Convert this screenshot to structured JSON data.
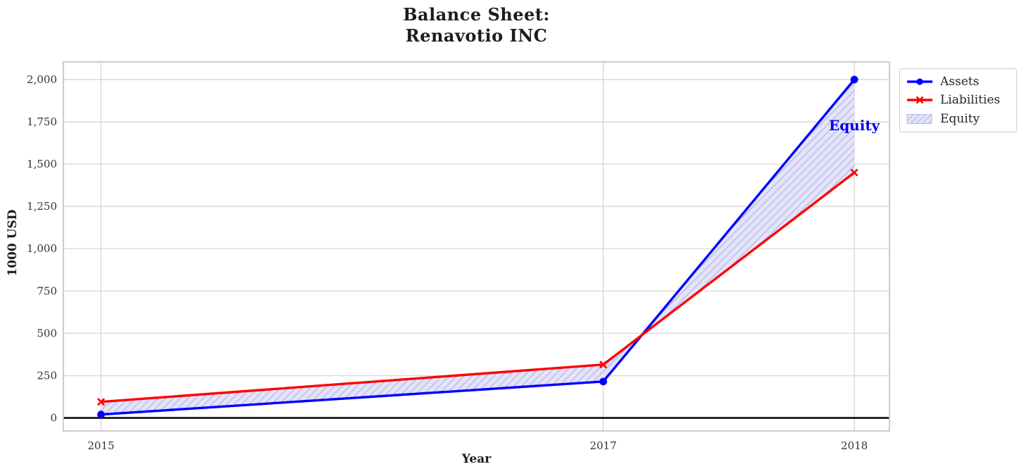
{
  "figure": {
    "title_lines": [
      "Balance Sheet:",
      "Renavotio INC"
    ],
    "xlabel": "Year",
    "ylabel": "1000 USD"
  },
  "legend": {
    "items": [
      {
        "label": "Assets",
        "sample": "line-circle",
        "color": "#0000ff"
      },
      {
        "label": "Liabilities",
        "sample": "line-x",
        "color": "#ff0000"
      },
      {
        "label": "Equity",
        "sample": "hatch-patch",
        "color": "#e4e4f8"
      }
    ]
  },
  "colors": {
    "grid": "#dcdcdc",
    "spine": "#c6c6c6",
    "zero_line": "#000000",
    "tick_text": "#333333",
    "title_text": "#1c1c1c",
    "equity_fill": "#e4e4f8",
    "equity_hatch": "#b9b9ee",
    "annotation": "#0000ee"
  },
  "chart_data": {
    "type": "line",
    "title": "Balance Sheet:\nRenavotio INC",
    "xlabel": "Year",
    "ylabel": "1000 USD",
    "x": [
      2015,
      2017,
      2018
    ],
    "series": [
      {
        "name": "Assets",
        "color": "#0000ff",
        "marker": "circle",
        "values": [
          20,
          215,
          2000
        ]
      },
      {
        "name": "Liabilities",
        "color": "#ff0000",
        "marker": "x",
        "values": [
          95,
          315,
          1450
        ]
      }
    ],
    "fill_between": {
      "name": "Equity",
      "between": [
        "Assets",
        "Liabilities"
      ],
      "fill": "#e4e4f8",
      "hatch": "//",
      "hatch_color": "#b9b9ee"
    },
    "annotation": {
      "text": "Equity",
      "x": 2018,
      "y": 1730,
      "color": "#0000ee"
    },
    "xticks": [
      2015,
      2017,
      2018
    ],
    "xtick_labels": [
      "2015",
      "2017",
      "2018"
    ],
    "yticks": [
      0,
      250,
      500,
      750,
      1000,
      1250,
      1500,
      1750,
      2000
    ],
    "ytick_labels": [
      "0",
      "250",
      "500",
      "750",
      "1,000",
      "1,250",
      "1,500",
      "1,750",
      "2,000"
    ],
    "xlim": [
      2014.85,
      2018.14
    ],
    "ylim": [
      -77,
      2104
    ],
    "grid": true,
    "zero_line": true,
    "legend_position": "outside-top-right"
  }
}
